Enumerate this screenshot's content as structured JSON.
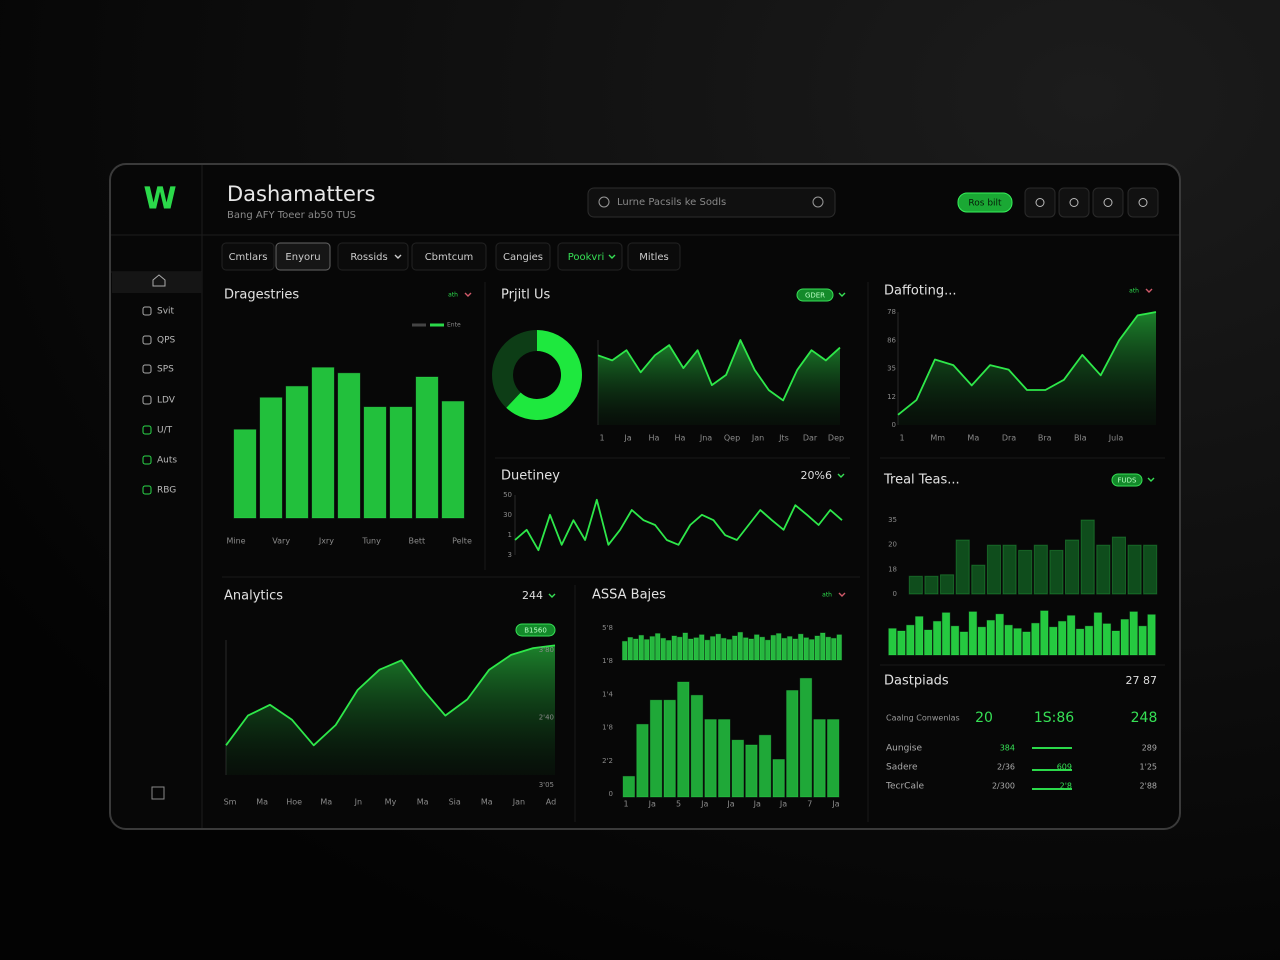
{
  "logo": "W",
  "header": {
    "title": "Dashamatters",
    "subtitle": "Bang AFY Toeer ab50 TUS",
    "search": "Lurne Pacsils ke Sodls",
    "button": "Ros bilt"
  },
  "sidebar": [
    "Svit",
    "QPS",
    "SPS",
    "LDV",
    "U/T",
    "Auts",
    "RBG"
  ],
  "tabs": [
    "Cmtlars",
    "Enyoru",
    "Rossids",
    "Cbmtcum",
    "Cangies",
    "Pookvri",
    "Mitles"
  ],
  "panels": [
    {
      "title": "Dragestries",
      "badge": "ath",
      "legend": "Ente",
      "charts": [
        {
          "type": "bar",
          "color": "#22c03c",
          "ylim": [
            0,
            100
          ],
          "values": [
            47,
            64,
            70,
            80,
            77,
            59,
            59,
            75,
            62
          ],
          "xlabels": [
            "Mine",
            "Vary",
            "Jxry",
            "Tuny",
            "Bett",
            "Pelte"
          ]
        }
      ]
    },
    {
      "title": "Prjitl Us",
      "badge": "GDER",
      "charts": [
        {
          "type": "donut",
          "values": [
            62,
            38
          ],
          "colors": [
            "#1ee83e",
            "#0d3d16"
          ]
        },
        {
          "type": "area",
          "color": "#2ee84a",
          "ylim": [
            0,
            100
          ],
          "values": [
            82,
            76,
            88,
            62,
            82,
            94,
            67,
            88,
            47,
            59,
            100,
            65,
            41,
            29,
            65,
            88,
            76,
            91
          ],
          "xlabels": [
            "1",
            "Ja",
            "Ha",
            "Ha",
            "Jna",
            "Qep",
            "Jan",
            "Jts",
            "Dar",
            "Dep"
          ]
        }
      ]
    },
    {
      "title": "Duetiney",
      "value": "20%6",
      "charts": [
        {
          "type": "line",
          "color": "#2ee84a",
          "ylim": [
            0,
            100
          ],
          "values": [
            25,
            42,
            8,
            67,
            17,
            58,
            25,
            92,
            17,
            42,
            75,
            58,
            50,
            25,
            17,
            50,
            67,
            58,
            33,
            25,
            50,
            75,
            58,
            42,
            83,
            67,
            50,
            75,
            58
          ],
          "ylabels": [
            "50",
            "30",
            "1",
            "3"
          ]
        }
      ]
    },
    {
      "title": "Daffoting...",
      "badge": "ath",
      "charts": [
        {
          "type": "area",
          "color": "#2ee84a",
          "ylim": [
            0,
            100
          ],
          "values": [
            9,
            22,
            58,
            53,
            35,
            53,
            49,
            31,
            31,
            40,
            62,
            44,
            75,
            97,
            100
          ],
          "ylabels": [
            "78",
            "86",
            "35",
            "12",
            "0"
          ],
          "xlabels": [
            "1",
            "Mm",
            "Ma",
            "Dra",
            "Bra",
            "Bla",
            "Jula"
          ]
        }
      ]
    },
    {
      "title": "Treal Teas...",
      "badge": "FUDS",
      "charts": [
        {
          "type": "bar",
          "color": "#0f4d1c",
          "ylim": [
            0,
            100
          ],
          "values": [
            24,
            24,
            26,
            73,
            39,
            66,
            66,
            59,
            66,
            59,
            73,
            100,
            66,
            77,
            66,
            66
          ],
          "ylabels": [
            "35",
            "20",
            "18",
            "0"
          ]
        },
        {
          "type": "bar",
          "color": "#25c940",
          "ylim": [
            0,
            100
          ],
          "values": [
            55,
            50,
            62,
            80,
            52,
            70,
            88,
            60,
            48,
            90,
            58,
            72,
            85,
            62,
            55,
            48,
            66,
            92,
            58,
            70,
            82,
            54,
            60,
            88,
            65,
            50,
            74,
            90,
            60,
            84
          ]
        }
      ]
    },
    {
      "title": "Dastpiads",
      "value": "27 87",
      "table": {
        "header": [
          "Caalng Conwenlas",
          "20",
          "1S:86",
          "248"
        ],
        "rows": [
          {
            "label": "Aungise",
            "a": "384",
            "c": "289"
          },
          {
            "label": "Sadere",
            "a": "2/36",
            "b": "609",
            "c": "1'25"
          },
          {
            "label": "TecrCale",
            "a": "2/300",
            "b": "2'8",
            "c": "2'88"
          }
        ]
      }
    },
    {
      "title": "Analytics",
      "value": "244",
      "badge": "B1560",
      "charts": [
        {
          "type": "area",
          "color": "#2ee84a",
          "ylim": [
            0,
            100
          ],
          "values": [
            22,
            44,
            52,
            41,
            22,
            37,
            63,
            78,
            85,
            63,
            44,
            56,
            78,
            89,
            94,
            96
          ],
          "ylabels": [
            "3'80",
            "2'40",
            "3'05"
          ],
          "xlabels": [
            "Sm",
            "Ma",
            "Hoe",
            "Ma",
            "Jn",
            "My",
            "Ma",
            "Sia",
            "Ma",
            "Jan",
            "Ad"
          ]
        }
      ]
    },
    {
      "title": "ASSA Bajes",
      "badge": "ath",
      "charts": [
        {
          "type": "bar",
          "color": "#26b83f",
          "ylim": [
            0,
            100
          ],
          "values": [
            62,
            75,
            70,
            82,
            68,
            78,
            88,
            72,
            65,
            80,
            76,
            90,
            70,
            74,
            84,
            66,
            78,
            86,
            72,
            68,
            80,
            92,
            74,
            70,
            84,
            76,
            66,
            82,
            88,
            72,
            78,
            70,
            86,
            74,
            68,
            80,
            90,
            76,
            72,
            84
          ]
        },
        {
          "type": "bar",
          "color": "#1fa838",
          "ylim": [
            0,
            100
          ],
          "values": [
            17,
            60,
            80,
            80,
            95,
            84,
            64,
            64,
            47,
            43,
            51,
            31,
            88,
            98,
            64,
            64
          ],
          "ylabels": [
            "5'8",
            "1'8",
            "1'4",
            "1'8",
            "2'2",
            "0"
          ],
          "xlabels": [
            "1",
            "Ja",
            "5",
            "Ja",
            "Ja",
            "Ja",
            "Ja",
            "7",
            "Ja"
          ]
        }
      ]
    }
  ]
}
